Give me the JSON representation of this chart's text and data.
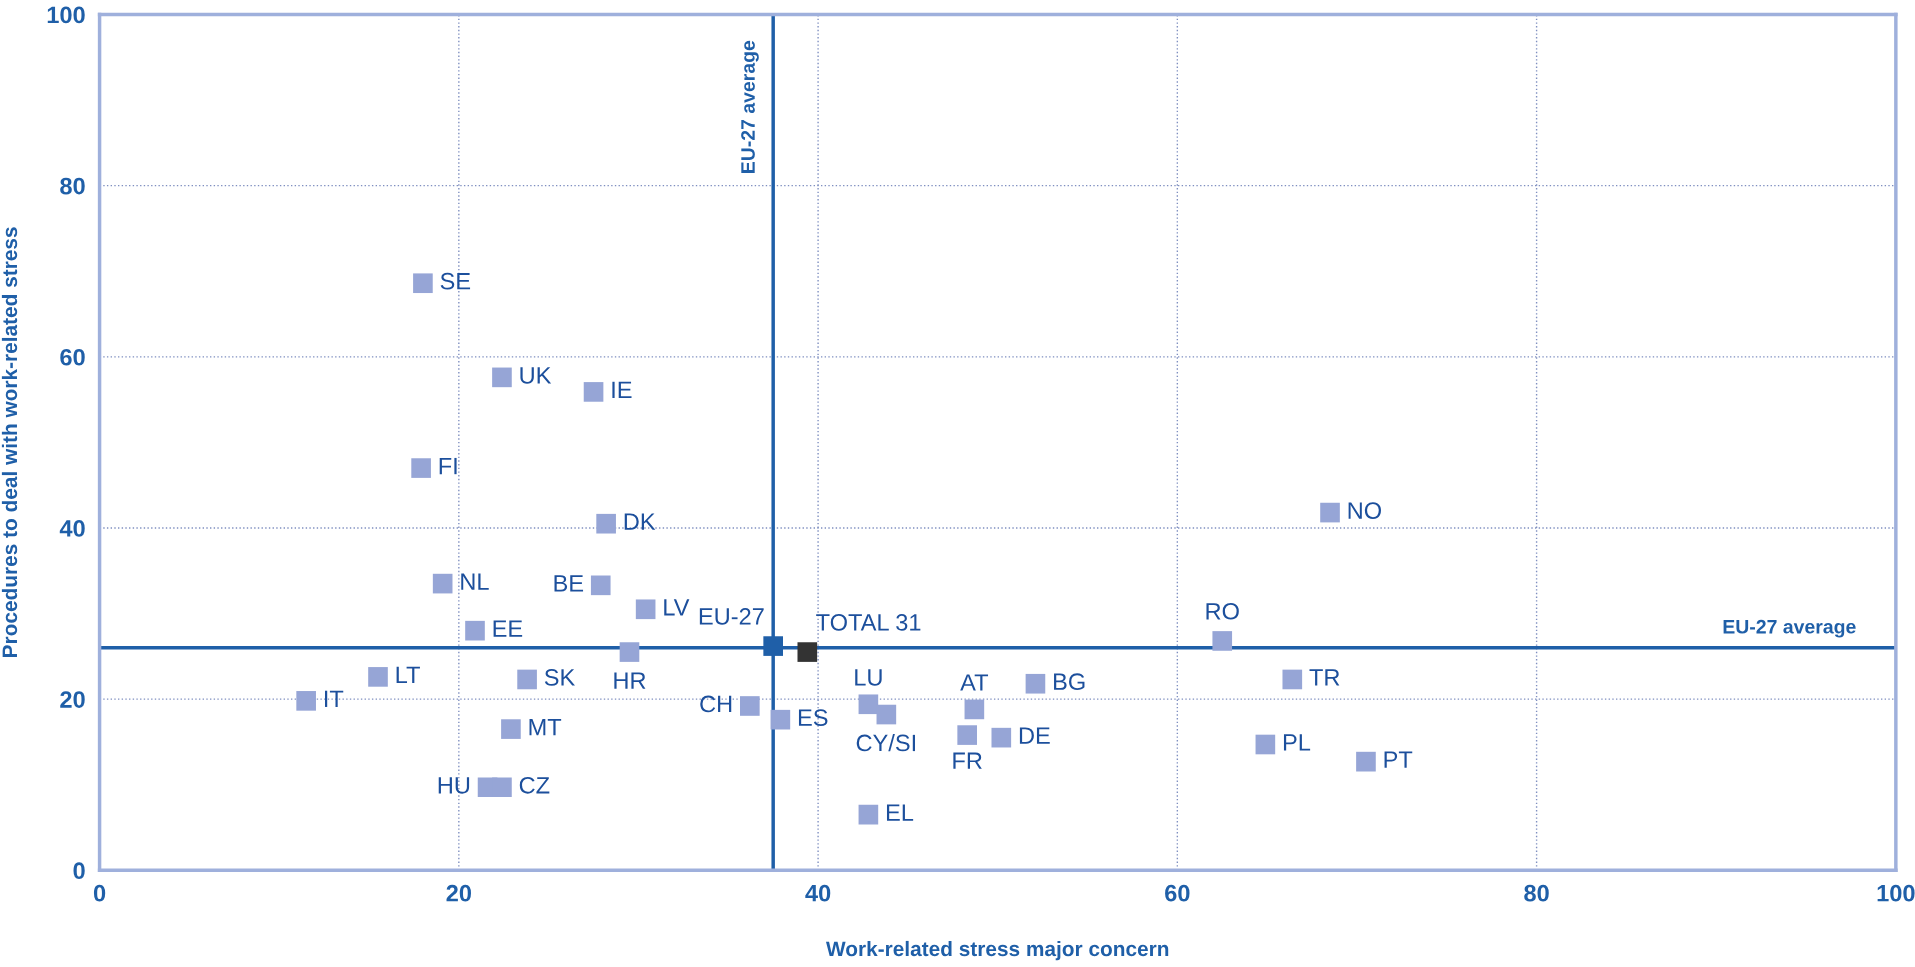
{
  "chart_data": {
    "type": "scatter",
    "xlabel": "Work-related stress major concern",
    "ylabel": "Procedures to deal with work-related stress",
    "x": [
      18.0,
      22.4,
      27.5,
      17.9,
      28.2,
      68.5,
      19.1,
      27.9,
      30.4,
      20.9,
      29.5,
      37.5,
      39.4,
      62.5,
      15.5,
      23.8,
      11.5,
      36.2,
      37.9,
      42.8,
      43.8,
      48.7,
      52.1,
      48.3,
      50.2,
      66.4,
      64.9,
      70.5,
      22.9,
      21.6,
      22.4,
      42.8
    ],
    "values": [
      68.6,
      57.6,
      55.9,
      47.0,
      40.5,
      41.8,
      33.5,
      33.3,
      30.5,
      28.0,
      25.5,
      26.2,
      25.5,
      26.8,
      22.6,
      22.3,
      19.8,
      19.2,
      17.6,
      19.4,
      18.2,
      18.8,
      21.8,
      15.8,
      15.5,
      22.3,
      14.7,
      12.7,
      16.5,
      9.7,
      9.7,
      6.5
    ],
    "colors": [
      "#96a5d6",
      "#96a5d6",
      "#96a5d6",
      "#96a5d6",
      "#96a5d6",
      "#96a5d6",
      "#96a5d6",
      "#96a5d6",
      "#96a5d6",
      "#96a5d6",
      "#96a5d6",
      "#1f5fa8",
      "#333333",
      "#96a5d6",
      "#96a5d6",
      "#96a5d6",
      "#96a5d6",
      "#96a5d6",
      "#96a5d6",
      "#96a5d6",
      "#96a5d6",
      "#96a5d6",
      "#96a5d6",
      "#96a5d6",
      "#96a5d6",
      "#96a5d6",
      "#96a5d6",
      "#96a5d6",
      "#96a5d6",
      "#96a5d6",
      "#96a5d6",
      "#96a5d6"
    ],
    "annotations": [
      {
        "text": "SE",
        "x": 18.0,
        "y": 68.6
      },
      {
        "text": "UK",
        "x": 22.4,
        "y": 57.6
      },
      {
        "text": "IE",
        "x": 27.5,
        "y": 55.9
      },
      {
        "text": "FI",
        "x": 17.9,
        "y": 47.0
      },
      {
        "text": "DK",
        "x": 28.2,
        "y": 40.5
      },
      {
        "text": "NO",
        "x": 68.5,
        "y": 41.8
      },
      {
        "text": "NL",
        "x": 19.1,
        "y": 33.5
      },
      {
        "text": "BE",
        "x": 27.9,
        "y": 33.3
      },
      {
        "text": "LV",
        "x": 30.4,
        "y": 30.5
      },
      {
        "text": "EE",
        "x": 20.9,
        "y": 28.0
      },
      {
        "text": "HR",
        "x": 29.5,
        "y": 25.5
      },
      {
        "text": "EU-27",
        "x": 37.5,
        "y": 26.2
      },
      {
        "text": "TOTAL 31",
        "x": 39.4,
        "y": 25.5
      },
      {
        "text": "RO",
        "x": 62.5,
        "y": 26.8
      },
      {
        "text": "LT",
        "x": 15.5,
        "y": 22.6
      },
      {
        "text": "SK",
        "x": 23.8,
        "y": 22.3
      },
      {
        "text": "IT",
        "x": 11.5,
        "y": 19.8
      },
      {
        "text": "CH",
        "x": 36.2,
        "y": 19.2
      },
      {
        "text": "ES",
        "x": 37.9,
        "y": 17.6
      },
      {
        "text": "LU",
        "x": 42.8,
        "y": 19.4
      },
      {
        "text": "CY/SI",
        "x": 43.8,
        "y": 18.2
      },
      {
        "text": "AT",
        "x": 48.7,
        "y": 18.8
      },
      {
        "text": "BG",
        "x": 52.1,
        "y": 21.8
      },
      {
        "text": "FR",
        "x": 48.3,
        "y": 15.8
      },
      {
        "text": "DE",
        "x": 50.2,
        "y": 15.5
      },
      {
        "text": "TR",
        "x": 66.4,
        "y": 22.3
      },
      {
        "text": "PL",
        "x": 64.9,
        "y": 14.7
      },
      {
        "text": "PT",
        "x": 70.5,
        "y": 12.7
      },
      {
        "text": "MT",
        "x": 22.9,
        "y": 16.5
      },
      {
        "text": "HU",
        "x": 21.6,
        "y": 9.7
      },
      {
        "text": "CZ",
        "x": 22.4,
        "y": 9.7
      },
      {
        "text": "EL",
        "x": 42.8,
        "y": 6.5
      }
    ],
    "ref_lines": [
      {
        "axis": "x",
        "value": 37.5,
        "label": "EU-27 average",
        "color": "#1f5fa8"
      },
      {
        "axis": "y",
        "value": 26.0,
        "label": "EU-27 average",
        "color": "#1f5fa8"
      }
    ],
    "xlim": [
      0,
      100
    ],
    "ylim": [
      0,
      100
    ],
    "xticks": [
      0,
      20,
      40,
      60,
      80,
      100
    ],
    "yticks": [
      0,
      20,
      40,
      60,
      80,
      100
    ],
    "grid": true,
    "marker": "square"
  }
}
